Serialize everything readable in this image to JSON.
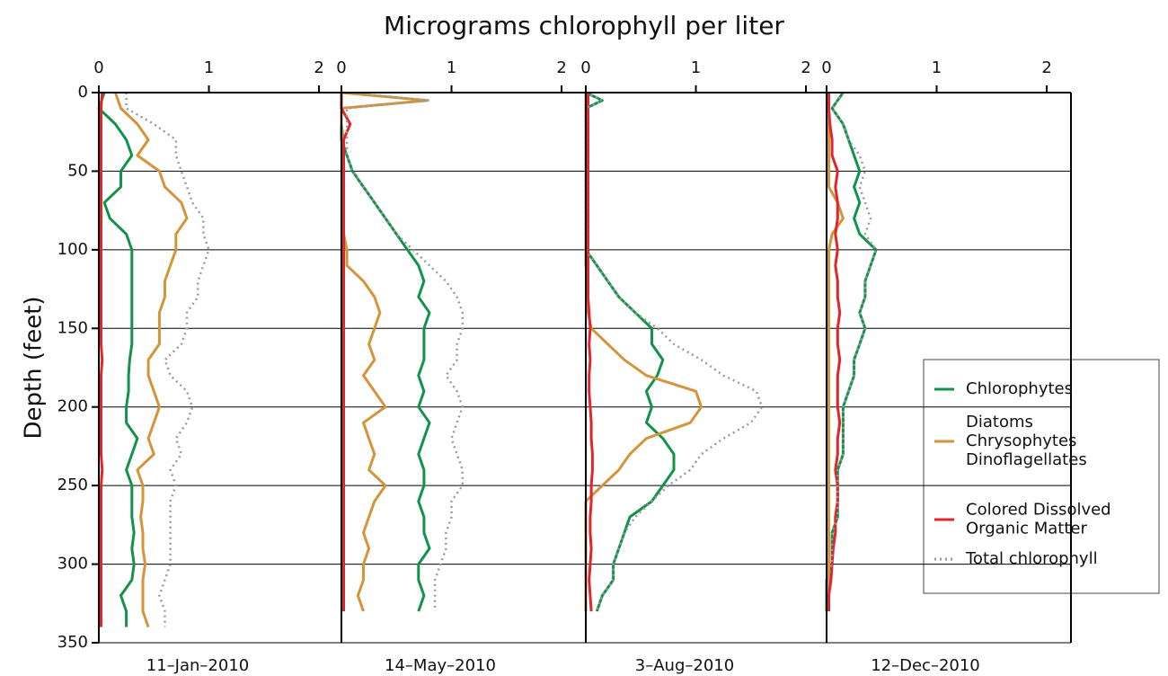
{
  "chart_data": {
    "type": "line",
    "title": "Micrograms chlorophyll per liter",
    "ylabel": "Depth (feet)",
    "ylim": [
      350,
      0
    ],
    "yticks": [
      0,
      50,
      100,
      150,
      200,
      250,
      300,
      350
    ],
    "xlim": [
      0,
      2.22
    ],
    "xticks": [
      0,
      1,
      2
    ],
    "grid": true,
    "legend": "right",
    "series": [
      {
        "name": [
          "Chlorophytes"
        ],
        "color": "#12934a",
        "style": "solid"
      },
      {
        "name": [
          "Diatoms",
          "Chrysophytes",
          "Dinoflagellates"
        ],
        "color": "#d4943a",
        "style": "solid"
      },
      {
        "name": [
          "Colored Dissolved",
          "Organic Matter"
        ],
        "color": "#e0262b",
        "style": "solid"
      },
      {
        "name": [
          "Total chlorophyll"
        ],
        "color": "#9a9a9a",
        "style": "dotted"
      }
    ],
    "panels": [
      {
        "date": "11–Jan–2010",
        "depth": [
          0,
          10,
          20,
          30,
          40,
          50,
          60,
          70,
          80,
          90,
          100,
          110,
          120,
          130,
          140,
          150,
          160,
          170,
          180,
          190,
          200,
          210,
          220,
          230,
          240,
          250,
          260,
          270,
          280,
          290,
          300,
          310,
          320,
          330,
          340
        ],
        "values": [
          [
            0.05,
            0.0,
            0.15,
            0.25,
            0.3,
            0.2,
            0.2,
            0.05,
            0.1,
            0.25,
            0.3,
            0.3,
            0.3,
            0.3,
            0.3,
            0.3,
            0.3,
            0.28,
            0.27,
            0.27,
            0.25,
            0.25,
            0.35,
            0.3,
            0.25,
            0.3,
            0.3,
            0.3,
            0.32,
            0.3,
            0.32,
            0.3,
            0.2,
            0.25,
            0.25
          ],
          [
            0.15,
            0.2,
            0.35,
            0.45,
            0.35,
            0.55,
            0.6,
            0.75,
            0.8,
            0.7,
            0.7,
            0.65,
            0.6,
            0.6,
            0.55,
            0.55,
            0.55,
            0.45,
            0.45,
            0.5,
            0.55,
            0.5,
            0.45,
            0.5,
            0.35,
            0.4,
            0.4,
            0.38,
            0.4,
            0.4,
            0.42,
            0.4,
            0.4,
            0.4,
            0.45
          ],
          [
            0.03,
            0.02,
            0.02,
            0.02,
            0.02,
            0.02,
            0.02,
            0.02,
            0.02,
            0.02,
            0.02,
            0.02,
            0.02,
            0.02,
            0.02,
            0.02,
            0.02,
            0.03,
            0.02,
            0.02,
            0.02,
            0.02,
            0.02,
            0.02,
            0.03,
            0.02,
            0.02,
            0.02,
            0.02,
            0.02,
            0.02,
            0.02,
            0.02,
            0.02,
            0.02
          ],
          [
            0.25,
            0.25,
            0.5,
            0.7,
            0.7,
            0.75,
            0.8,
            0.85,
            0.95,
            0.95,
            1.0,
            0.95,
            0.9,
            0.9,
            0.8,
            0.8,
            0.75,
            0.6,
            0.65,
            0.8,
            0.85,
            0.8,
            0.7,
            0.75,
            0.65,
            0.7,
            0.65,
            0.65,
            0.65,
            0.65,
            0.65,
            0.6,
            0.55,
            0.6,
            0.6
          ]
        ]
      },
      {
        "date": "14–May–2010",
        "depth": [
          0,
          5,
          10,
          20,
          30,
          40,
          50,
          60,
          70,
          80,
          90,
          100,
          110,
          120,
          130,
          140,
          150,
          160,
          170,
          180,
          190,
          200,
          210,
          220,
          230,
          240,
          250,
          260,
          270,
          280,
          290,
          300,
          310,
          320,
          330
        ],
        "values": [
          [
            0,
            0,
            0,
            0,
            0,
            0.05,
            0.1,
            0.2,
            0.3,
            0.4,
            0.5,
            0.6,
            0.7,
            0.75,
            0.7,
            0.8,
            0.75,
            0.75,
            0.75,
            0.7,
            0.75,
            0.7,
            0.8,
            0.75,
            0.7,
            0.75,
            0.75,
            0.7,
            0.75,
            0.75,
            0.8,
            0.7,
            0.7,
            0.75,
            0.7
          ],
          [
            0,
            0.78,
            0,
            0,
            0.02,
            0.02,
            0.02,
            0.02,
            0.02,
            0.02,
            0.02,
            0.05,
            0.05,
            0.2,
            0.3,
            0.35,
            0.3,
            0.25,
            0.3,
            0.2,
            0.3,
            0.4,
            0.2,
            0.25,
            0.3,
            0.25,
            0.4,
            0.3,
            0.25,
            0.2,
            0.25,
            0.2,
            0.2,
            0.15,
            0.2
          ],
          [
            0,
            0,
            0,
            0.08,
            0.02,
            0.02,
            0.02,
            0.02,
            0.02,
            0.02,
            0.02,
            0.02,
            0.02,
            0.02,
            0.02,
            0.02,
            0.02,
            0.02,
            0.02,
            0.02,
            0.02,
            0.02,
            0.02,
            0.02,
            0.02,
            0.02,
            0.02,
            0.02,
            0.02,
            0.02,
            0.02,
            0.02,
            0.02,
            0.02,
            0.02
          ],
          [
            0.05,
            0.8,
            0.05,
            0.05,
            0.05,
            0.05,
            0.1,
            0.2,
            0.3,
            0.4,
            0.5,
            0.65,
            0.8,
            0.95,
            1.05,
            1.1,
            1.1,
            1.05,
            1.05,
            0.95,
            1.05,
            1.1,
            1.05,
            1.0,
            1.05,
            1.1,
            1.1,
            1.0,
            1.0,
            0.95,
            0.95,
            0.9,
            0.85,
            0.85,
            0.85
          ]
        ]
      },
      {
        "date": "3–Aug–2010",
        "depth": [
          0,
          5,
          10,
          20,
          30,
          40,
          50,
          60,
          70,
          80,
          90,
          100,
          110,
          120,
          130,
          140,
          150,
          160,
          170,
          180,
          190,
          200,
          210,
          220,
          230,
          240,
          250,
          260,
          270,
          280,
          290,
          300,
          310,
          320,
          330
        ],
        "values": [
          [
            0,
            0.15,
            0,
            0,
            0,
            0,
            0,
            0,
            0,
            0,
            0,
            0,
            0.1,
            0.2,
            0.3,
            0.45,
            0.6,
            0.6,
            0.7,
            0.65,
            0.55,
            0.6,
            0.55,
            0.7,
            0.8,
            0.8,
            0.7,
            0.6,
            0.4,
            0.35,
            0.3,
            0.25,
            0.25,
            0.15,
            0.1
          ],
          [
            0,
            0,
            0,
            0,
            0,
            0,
            0,
            0,
            0,
            0,
            0,
            0,
            0,
            0.02,
            0.02,
            0.02,
            0.05,
            0.2,
            0.35,
            0.55,
            1.0,
            1.05,
            0.95,
            0.55,
            0.4,
            0.3,
            0.15,
            0,
            0,
            0,
            0,
            0,
            0,
            0,
            0
          ],
          [
            0.02,
            0.02,
            0.02,
            0.02,
            0.02,
            0.02,
            0.02,
            0.02,
            0.02,
            0.02,
            0.02,
            0.02,
            0.02,
            0.02,
            0.02,
            0.03,
            0.04,
            0.03,
            0.04,
            0.03,
            0.03,
            0.04,
            0.05,
            0.05,
            0.06,
            0.06,
            0.05,
            0.05,
            0.04,
            0.04,
            0.05,
            0.04,
            0.03,
            0.04,
            0.05
          ],
          [
            0,
            0.15,
            0,
            0,
            0,
            0,
            0,
            0,
            0,
            0,
            0,
            0,
            0.1,
            0.2,
            0.3,
            0.45,
            0.65,
            0.8,
            1.05,
            1.25,
            1.55,
            1.6,
            1.5,
            1.25,
            1.05,
            0.95,
            0.75,
            0.6,
            0.45,
            0.35,
            0.3,
            0.25,
            0.25,
            0.15,
            0.1
          ]
        ]
      },
      {
        "date": "12–Dec–2010",
        "depth": [
          0,
          10,
          20,
          30,
          40,
          50,
          60,
          70,
          80,
          90,
          100,
          110,
          120,
          130,
          140,
          150,
          160,
          170,
          180,
          190,
          200,
          210,
          220,
          230,
          240,
          250,
          260,
          270,
          280,
          290,
          300,
          310,
          320,
          330
        ],
        "values": [
          [
            0.15,
            0.05,
            0.15,
            0.2,
            0.25,
            0.3,
            0.25,
            0.3,
            0.25,
            0.3,
            0.45,
            0.4,
            0.35,
            0.35,
            0.3,
            0.35,
            0.3,
            0.25,
            0.25,
            0.2,
            0.15,
            0.15,
            0.15,
            0.15,
            0.1,
            0.1,
            0.1,
            0.1,
            0.05,
            0.05,
            0.05,
            0,
            0,
            0
          ],
          [
            0.02,
            0.02,
            0.02,
            0.02,
            0.02,
            0.02,
            0.02,
            0.1,
            0.15,
            0.05,
            0.02,
            0.02,
            0.02,
            0.02,
            0.02,
            0.02,
            0.02,
            0.02,
            0.02,
            0.02,
            0.02,
            0.02,
            0.02,
            0.02,
            0.02,
            0.02,
            0.02,
            0.02,
            0.02,
            0.02,
            0.02,
            0.02,
            0.02,
            0.02
          ],
          [
            0.02,
            0.02,
            0.03,
            0.05,
            0.05,
            0.1,
            0.08,
            0.1,
            0.1,
            0.08,
            0.1,
            0.08,
            0.1,
            0.1,
            0.12,
            0.1,
            0.1,
            0.12,
            0.1,
            0.1,
            0.1,
            0.12,
            0.1,
            0.1,
            0.08,
            0.1,
            0.1,
            0.08,
            0.08,
            0.06,
            0.05,
            0.04,
            0.02,
            0.02
          ],
          [
            0.15,
            0.05,
            0.15,
            0.2,
            0.3,
            0.35,
            0.3,
            0.35,
            0.4,
            0.35,
            0.45,
            0.4,
            0.35,
            0.35,
            0.3,
            0.35,
            0.3,
            0.25,
            0.25,
            0.2,
            0.15,
            0.15,
            0.15,
            0.15,
            0.1,
            0.1,
            0.1,
            0.1,
            0.05,
            0.05,
            0.05,
            0,
            0,
            0
          ]
        ]
      }
    ]
  }
}
